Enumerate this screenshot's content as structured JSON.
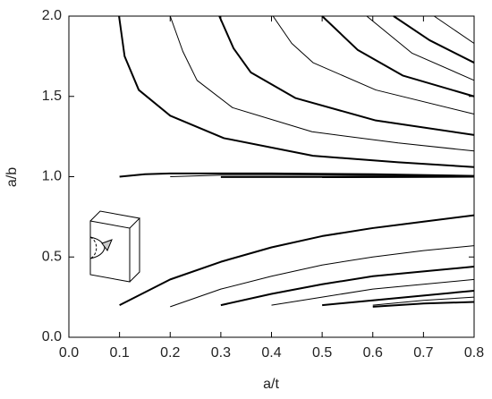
{
  "chart_data": {
    "type": "line",
    "x_label": "a/t",
    "y_label": "a/b",
    "xlim": [
      0,
      0.8
    ],
    "ylim": [
      0,
      2
    ],
    "xticks": [
      {
        "value": 0,
        "label": "0.0"
      },
      {
        "value": 0.1,
        "label": "0.1"
      },
      {
        "value": 0.2,
        "label": "0.2"
      },
      {
        "value": 0.3,
        "label": "0.3"
      },
      {
        "value": 0.4,
        "label": "0.4"
      },
      {
        "value": 0.5,
        "label": "0.5"
      },
      {
        "value": 0.6,
        "label": "0.6"
      },
      {
        "value": 0.7,
        "label": "0.7"
      },
      {
        "value": 0.8,
        "label": "0.8"
      }
    ],
    "yticks": [
      {
        "value": 0,
        "label": "0.0"
      },
      {
        "value": 0.5,
        "label": "0.5"
      },
      {
        "value": 1,
        "label": "1.0"
      },
      {
        "value": 1.5,
        "label": "1.5"
      },
      {
        "value": 2,
        "label": "2.0"
      }
    ],
    "series": [
      {
        "color": "#000000",
        "width": 2,
        "x": [
          0.099,
          0.11,
          0.138,
          0.2,
          0.306,
          0.482,
          0.65,
          0.8
        ],
        "values": [
          2.0,
          1.75,
          1.54,
          1.38,
          1.24,
          1.13,
          1.09,
          1.06
        ]
      },
      {
        "color": "#000000",
        "width": 1,
        "x": [
          0.2,
          0.225,
          0.253,
          0.323,
          0.48,
          0.65,
          0.8
        ],
        "values": [
          2.0,
          1.78,
          1.6,
          1.43,
          1.28,
          1.21,
          1.16
        ]
      },
      {
        "color": "#000000",
        "width": 2,
        "x": [
          0.297,
          0.325,
          0.359,
          0.447,
          0.606,
          0.8
        ],
        "values": [
          2.0,
          1.8,
          1.65,
          1.49,
          1.35,
          1.26
        ]
      },
      {
        "color": "#000000",
        "width": 1,
        "x": [
          0.403,
          0.44,
          0.482,
          0.606,
          0.8
        ],
        "values": [
          2.0,
          1.83,
          1.71,
          1.54,
          1.39
        ]
      },
      {
        "color": "#000000",
        "width": 2,
        "x": [
          0.5,
          0.57,
          0.659,
          0.8
        ],
        "values": [
          2.0,
          1.79,
          1.63,
          1.5
        ]
      },
      {
        "color": "#000000",
        "width": 1,
        "x": [
          0.588,
          0.677,
          0.8
        ],
        "values": [
          2.0,
          1.77,
          1.6
        ]
      },
      {
        "color": "#000000",
        "width": 2,
        "x": [
          0.641,
          0.712,
          0.8
        ],
        "values": [
          2.0,
          1.85,
          1.71
        ]
      },
      {
        "color": "#000000",
        "width": 1,
        "x": [
          0.721,
          0.8
        ],
        "values": [
          2.0,
          1.83
        ]
      },
      {
        "color": "#000000",
        "width": 2,
        "x": [
          0.1,
          0.15,
          0.2,
          0.4,
          0.6,
          0.8
        ],
        "values": [
          1.0,
          1.015,
          1.02,
          1.02,
          1.015,
          1.005
        ]
      },
      {
        "color": "#000000",
        "width": 1,
        "x": [
          0.2,
          0.3,
          0.5,
          0.8
        ],
        "values": [
          1.0,
          1.01,
          1.01,
          1.005
        ]
      },
      {
        "color": "#000000",
        "width": 2,
        "x": [
          0.3,
          0.8
        ],
        "values": [
          0.998,
          1.0
        ]
      },
      {
        "color": "#000000",
        "width": 1,
        "x": [
          0.4,
          0.8
        ],
        "values": [
          1.0,
          1.0
        ]
      },
      {
        "color": "#000000",
        "width": 2,
        "x": [
          0.5,
          0.8
        ],
        "values": [
          0.997,
          1.0
        ]
      },
      {
        "color": "#000000",
        "width": 2,
        "x": [
          0.1,
          0.2,
          0.3,
          0.4,
          0.5,
          0.6,
          0.7,
          0.8
        ],
        "values": [
          0.2,
          0.36,
          0.47,
          0.56,
          0.63,
          0.68,
          0.72,
          0.76
        ]
      },
      {
        "color": "#000000",
        "width": 1,
        "x": [
          0.2,
          0.3,
          0.4,
          0.5,
          0.6,
          0.7,
          0.8
        ],
        "values": [
          0.19,
          0.3,
          0.38,
          0.45,
          0.5,
          0.54,
          0.57
        ]
      },
      {
        "color": "#000000",
        "width": 2,
        "x": [
          0.3,
          0.4,
          0.5,
          0.6,
          0.7,
          0.8
        ],
        "values": [
          0.2,
          0.27,
          0.33,
          0.38,
          0.41,
          0.44
        ]
      },
      {
        "color": "#000000",
        "width": 1,
        "x": [
          0.4,
          0.5,
          0.6,
          0.7,
          0.8
        ],
        "values": [
          0.2,
          0.25,
          0.3,
          0.33,
          0.36
        ]
      },
      {
        "color": "#000000",
        "width": 2,
        "x": [
          0.5,
          0.6,
          0.7,
          0.8
        ],
        "values": [
          0.2,
          0.23,
          0.26,
          0.29
        ]
      },
      {
        "color": "#000000",
        "width": 1,
        "x": [
          0.6,
          0.7,
          0.8
        ],
        "values": [
          0.2,
          0.23,
          0.25
        ]
      },
      {
        "color": "#000000",
        "width": 2,
        "x": [
          0.6,
          0.7,
          0.8
        ],
        "values": [
          0.19,
          0.21,
          0.22
        ]
      }
    ]
  }
}
